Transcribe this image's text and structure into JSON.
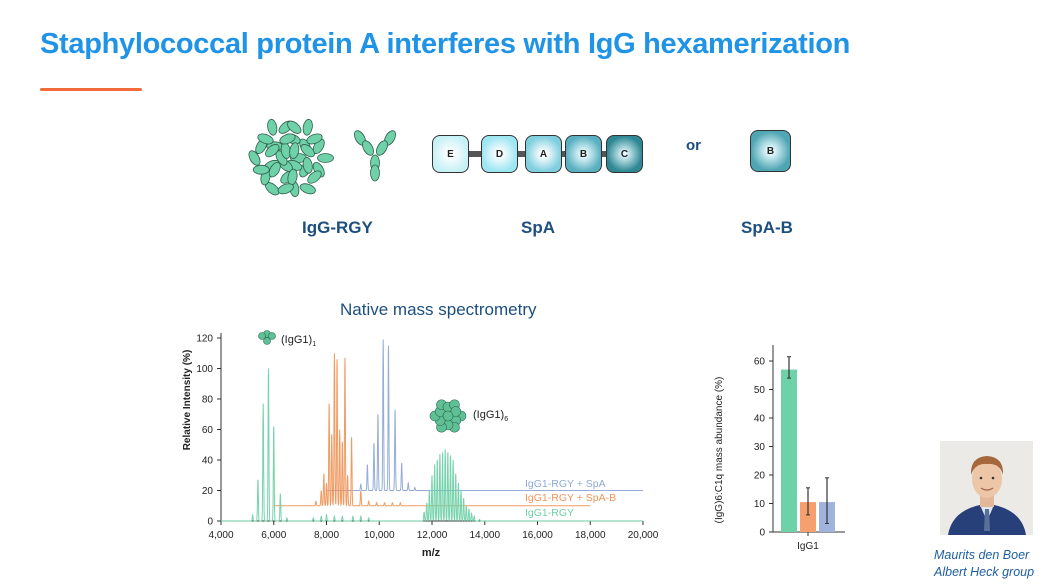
{
  "slide": {
    "title": "Staphylococcal protein A interferes with IgG hexamerization",
    "accent_color": "#f26b3a",
    "title_color": "#1f93e6"
  },
  "diagram": {
    "labels": {
      "igg": "IgG-RGY",
      "spa": "SpA",
      "spab": "SpA-B",
      "or": "or"
    },
    "spa_domains": [
      "E",
      "D",
      "A",
      "B",
      "C"
    ],
    "spab_domain": "B"
  },
  "credit": {
    "name": "Maurits den Boer",
    "group": "Albert Heck group"
  },
  "chart_data": [
    {
      "type": "line",
      "title": "Native mass spectrometry",
      "xlabel": "m/z",
      "ylabel": "Relative Intensity (%)",
      "xlim": [
        4000,
        20000
      ],
      "ylim": [
        0,
        120
      ],
      "xticks": [
        "4,000",
        "6,000",
        "8,000",
        "10,000",
        "12,000",
        "14,000",
        "16,000",
        "18,000",
        "20,000"
      ],
      "yticks": [
        "0",
        "20",
        "40",
        "60",
        "80",
        "100",
        "120"
      ],
      "annotations": {
        "monomer": "(IgG1)",
        "monomer_sub": "1",
        "hexamer": "(IgG1)",
        "hexamer_sub": "6"
      },
      "series": [
        {
          "name": "IgG1-RGY + SpA",
          "color": "#8fa9d6",
          "baseline": 20,
          "x_range": [
            8000,
            20000
          ],
          "peaks": [
            [
              9300,
              4
            ],
            [
              9550,
              17
            ],
            [
              9800,
              31
            ],
            [
              9950,
              50
            ],
            [
              10150,
              99
            ],
            [
              10350,
              95
            ],
            [
              10600,
              53
            ],
            [
              10850,
              18
            ],
            [
              11100,
              5
            ],
            [
              11350,
              2
            ]
          ]
        },
        {
          "name": "IgG1-RGY + SpA-B",
          "color": "#f0955a",
          "baseline": 10,
          "x_range": [
            6000,
            18000
          ],
          "peaks": [
            [
              7600,
              3
            ],
            [
              7800,
              10
            ],
            [
              7900,
              21
            ],
            [
              8000,
              15
            ],
            [
              8100,
              67
            ],
            [
              8200,
              47
            ],
            [
              8300,
              100
            ],
            [
              8400,
              96
            ],
            [
              8500,
              50
            ],
            [
              8600,
              42
            ],
            [
              8700,
              97
            ],
            [
              8800,
              20
            ],
            [
              8950,
              45
            ],
            [
              9300,
              10
            ],
            [
              9600,
              3
            ],
            [
              9900,
              2
            ],
            [
              10200,
              2
            ],
            [
              10500,
              2
            ],
            [
              10800,
              2
            ]
          ]
        },
        {
          "name": "IgG1-RGY",
          "color": "#6fd1a8",
          "baseline": 0,
          "x_range": [
            4000,
            20000
          ],
          "peaks": [
            [
              5200,
              4
            ],
            [
              5400,
              27
            ],
            [
              5600,
              77
            ],
            [
              5800,
              100
            ],
            [
              6000,
              62
            ],
            [
              6250,
              18
            ],
            [
              6500,
              2
            ],
            [
              7500,
              2
            ],
            [
              7800,
              3
            ],
            [
              8000,
              4
            ],
            [
              8300,
              3
            ],
            [
              8600,
              3
            ],
            [
              9000,
              3
            ],
            [
              9300,
              3
            ],
            [
              9600,
              2
            ],
            [
              11700,
              6
            ],
            [
              11800,
              12
            ],
            [
              11900,
              20
            ],
            [
              12000,
              30
            ],
            [
              12100,
              37
            ],
            [
              12200,
              40
            ],
            [
              12300,
              44
            ],
            [
              12400,
              45
            ],
            [
              12500,
              47
            ],
            [
              12600,
              45
            ],
            [
              12700,
              43
            ],
            [
              12800,
              40
            ],
            [
              12900,
              31
            ],
            [
              13000,
              25
            ],
            [
              13100,
              20
            ],
            [
              13200,
              15
            ],
            [
              13300,
              10
            ],
            [
              13400,
              8
            ],
            [
              13500,
              5
            ],
            [
              13600,
              3
            ],
            [
              13800,
              1
            ]
          ]
        }
      ]
    },
    {
      "type": "bar",
      "ylabel": "(IgG)6:C1q mass abundance (%)",
      "categories": [
        "IgG1"
      ],
      "ylim": [
        0,
        65
      ],
      "yticks": [
        "0",
        "10",
        "20",
        "30",
        "40",
        "50",
        "60"
      ],
      "series": [
        {
          "name": "IgG1-RGY",
          "color": "#6fd1a8",
          "value": 57,
          "error": [
            54,
            61.5
          ]
        },
        {
          "name": "IgG1-RGY + SpA-B",
          "color": "#f5a06e",
          "value": 10.5,
          "error": [
            6,
            15.5
          ]
        },
        {
          "name": "IgG1-RGY + SpA",
          "color": "#9fb3dc",
          "value": 10.5,
          "error": [
            3,
            19
          ]
        }
      ]
    }
  ]
}
